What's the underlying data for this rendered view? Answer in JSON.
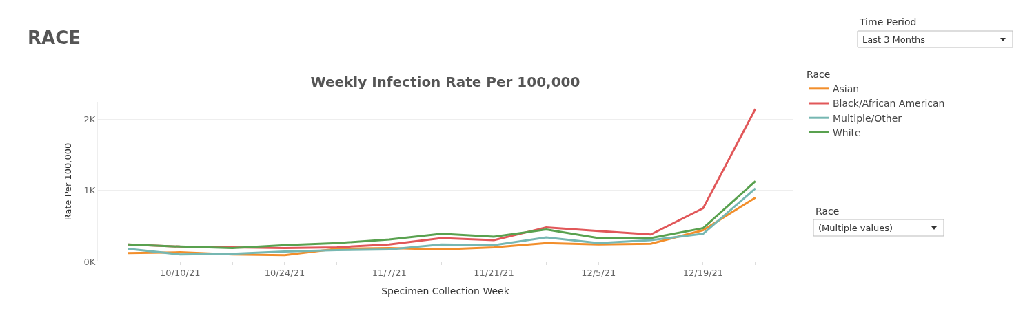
{
  "chart_data": {
    "type": "line",
    "title": "Weekly Infection Rate Per 100,000",
    "xlabel": "Specimen Collection Week",
    "ylabel": "Rate Per 100,000",
    "legend_title": "Race",
    "annotations": [
      "RACE",
      "Time Period",
      "Last 3 Months",
      "Race",
      "(Multiple values)"
    ],
    "x": [
      "--10-03",
      "--10-10",
      "--10-17",
      "--10-24",
      "--10-31",
      "--11-07",
      "--11-14",
      "--11-21",
      "--11-28",
      "--12-05",
      "--12-12",
      "--12-19",
      "--12-26"
    ],
    "series": [
      {
        "name": "Asian",
        "color": "#f28e2b",
        "values": [
          120,
          130,
          100,
          90,
          180,
          190,
          170,
          200,
          260,
          240,
          250,
          440,
          900
        ]
      },
      {
        "name": "Black/African American",
        "color": "#e15759",
        "values": [
          240,
          210,
          200,
          190,
          200,
          240,
          330,
          300,
          480,
          430,
          380,
          750,
          2150
        ]
      },
      {
        "name": "Multiple/Other",
        "color": "#76b7b2",
        "values": [
          180,
          100,
          110,
          140,
          160,
          170,
          240,
          230,
          340,
          260,
          300,
          390,
          1030
        ]
      },
      {
        "name": "White",
        "color": "#59a14f",
        "values": [
          240,
          210,
          190,
          230,
          260,
          310,
          390,
          350,
          450,
          330,
          330,
          470,
          1130
        ]
      }
    ],
    "xlim": [
      "--09-29",
      "--12-31"
    ],
    "xticks": [
      {
        "value": "--10-03",
        "label": null
      },
      {
        "value": "--10-10",
        "label": "10/10/21"
      },
      {
        "value": "--10-17",
        "label": null
      },
      {
        "value": "--10-24",
        "label": "10/24/21"
      },
      {
        "value": "--10-31",
        "label": null
      },
      {
        "value": "--11-07",
        "label": "11/7/21"
      },
      {
        "value": "--11-14",
        "label": null
      },
      {
        "value": "--11-21",
        "label": "11/21/21"
      },
      {
        "value": "--11-28",
        "label": null
      },
      {
        "value": "--12-05",
        "label": "12/5/21"
      },
      {
        "value": "--12-12",
        "label": null
      },
      {
        "value": "--12-19",
        "label": "12/19/21"
      },
      {
        "value": "--12-26",
        "label": null
      }
    ],
    "ylim": [
      0,
      2250
    ],
    "yticks": [
      {
        "value": 0,
        "label": "0K"
      },
      {
        "value": 1000,
        "label": "1K"
      },
      {
        "value": 2000,
        "label": "2K"
      }
    ],
    "grid": "y",
    "legend": "top right",
    "marker": "none",
    "line_style": "solid"
  }
}
